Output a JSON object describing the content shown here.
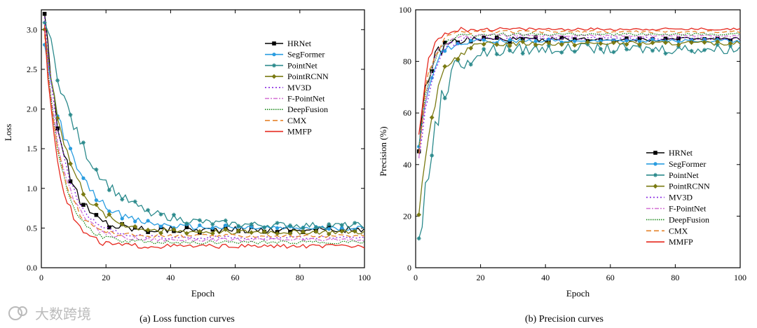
{
  "chart_data": [
    {
      "type": "line",
      "title": "(a) Loss function curves",
      "xlabel": "Epoch",
      "ylabel": "Loss",
      "xlim": [
        0,
        100
      ],
      "ylim": [
        0,
        3.25
      ],
      "xticks": [
        0,
        20,
        40,
        60,
        80,
        100
      ],
      "yticks": [
        0.0,
        0.5,
        1.0,
        1.5,
        2.0,
        2.5,
        3.0
      ],
      "ytick_labels": [
        "0.0",
        "0.5",
        "1.0",
        "1.5",
        "2.0",
        "2.5",
        "3.0"
      ],
      "legend_position": "top-right",
      "series": [
        {
          "name": "HRNet",
          "start": 3.3,
          "final": 0.48,
          "tau": 5.5,
          "noise": 0.04
        },
        {
          "name": "SegFormer",
          "start": 2.8,
          "final": 0.5,
          "tau": 9.0,
          "noise": 0.03
        },
        {
          "name": "PointNet",
          "start": 3.2,
          "final": 0.53,
          "tau": 12.0,
          "noise": 0.04
        },
        {
          "name": "PointRCNN",
          "start": 3.0,
          "final": 0.45,
          "tau": 7.5,
          "noise": 0.03
        },
        {
          "name": "MV3D",
          "start": 3.1,
          "final": 0.38,
          "tau": 6.0,
          "noise": 0.02
        },
        {
          "name": "F-PointNet",
          "start": 3.0,
          "final": 0.35,
          "tau": 5.5,
          "noise": 0.02
        },
        {
          "name": "DeepFusion",
          "start": 3.0,
          "final": 0.32,
          "tau": 5.0,
          "noise": 0.02
        },
        {
          "name": "CMX",
          "start": 2.95,
          "final": 0.4,
          "tau": 5.0,
          "noise": 0.02
        },
        {
          "name": "MMFP",
          "start": 3.0,
          "final": 0.27,
          "tau": 4.5,
          "noise": 0.025
        }
      ]
    },
    {
      "type": "line",
      "title": "(b) Precision curves",
      "xlabel": "Epoch",
      "ylabel": "Precision (%)",
      "xlim": [
        0,
        100
      ],
      "ylim": [
        0,
        100
      ],
      "xticks": [
        0,
        20,
        40,
        60,
        80,
        100
      ],
      "yticks": [
        0,
        20,
        40,
        60,
        80,
        100
      ],
      "ytick_labels": [
        "0",
        "20",
        "40",
        "60",
        "80",
        "100"
      ],
      "legend_position": "bottom-right",
      "series": [
        {
          "name": "HRNet",
          "start": 49,
          "final": 88.5,
          "tau": 3.0,
          "noise": 0.8
        },
        {
          "name": "SegFormer",
          "start": 47,
          "final": 88,
          "tau": 3.5,
          "noise": 0.6
        },
        {
          "name": "PointNet",
          "start": 2,
          "final": 85,
          "tau": 5.0,
          "noise": 2.0
        },
        {
          "name": "PointRCNN",
          "start": 21,
          "final": 87,
          "tau": 4.5,
          "noise": 0.8
        },
        {
          "name": "MV3D",
          "start": 40,
          "final": 89,
          "tau": 3.5,
          "noise": 0.6
        },
        {
          "name": "F-PointNet",
          "start": 43,
          "final": 90,
          "tau": 3.0,
          "noise": 0.5
        },
        {
          "name": "DeepFusion",
          "start": 45,
          "final": 90.5,
          "tau": 3.0,
          "noise": 0.5
        },
        {
          "name": "CMX",
          "start": 45,
          "final": 91.5,
          "tau": 3.0,
          "noise": 0.5
        },
        {
          "name": "MMFP",
          "start": 50,
          "final": 92.5,
          "tau": 2.5,
          "noise": 0.5
        }
      ]
    }
  ],
  "styles": [
    {
      "name": "HRNet",
      "color": "#000000",
      "dash": "",
      "marker": "square"
    },
    {
      "name": "SegFormer",
      "color": "#2a9de0",
      "dash": "",
      "marker": "circle"
    },
    {
      "name": "PointNet",
      "color": "#2b8a8c",
      "dash": "",
      "marker": "star"
    },
    {
      "name": "PointRCNN",
      "color": "#7a7a12",
      "dash": "",
      "marker": "diamond"
    },
    {
      "name": "MV3D",
      "color": "#8a2be2",
      "dash": "2,3",
      "marker": "none"
    },
    {
      "name": "F-PointNet",
      "color": "#d36fd3",
      "dash": "6,2,2,2",
      "marker": "none"
    },
    {
      "name": "DeepFusion",
      "color": "#1d8a1d",
      "dash": "1.5,1.5",
      "marker": "none"
    },
    {
      "name": "CMX",
      "color": "#e5832a",
      "dash": "7,4",
      "marker": "none"
    },
    {
      "name": "MMFP",
      "color": "#e6281e",
      "dash": "",
      "marker": "none"
    }
  ],
  "watermark": "大数跨境"
}
